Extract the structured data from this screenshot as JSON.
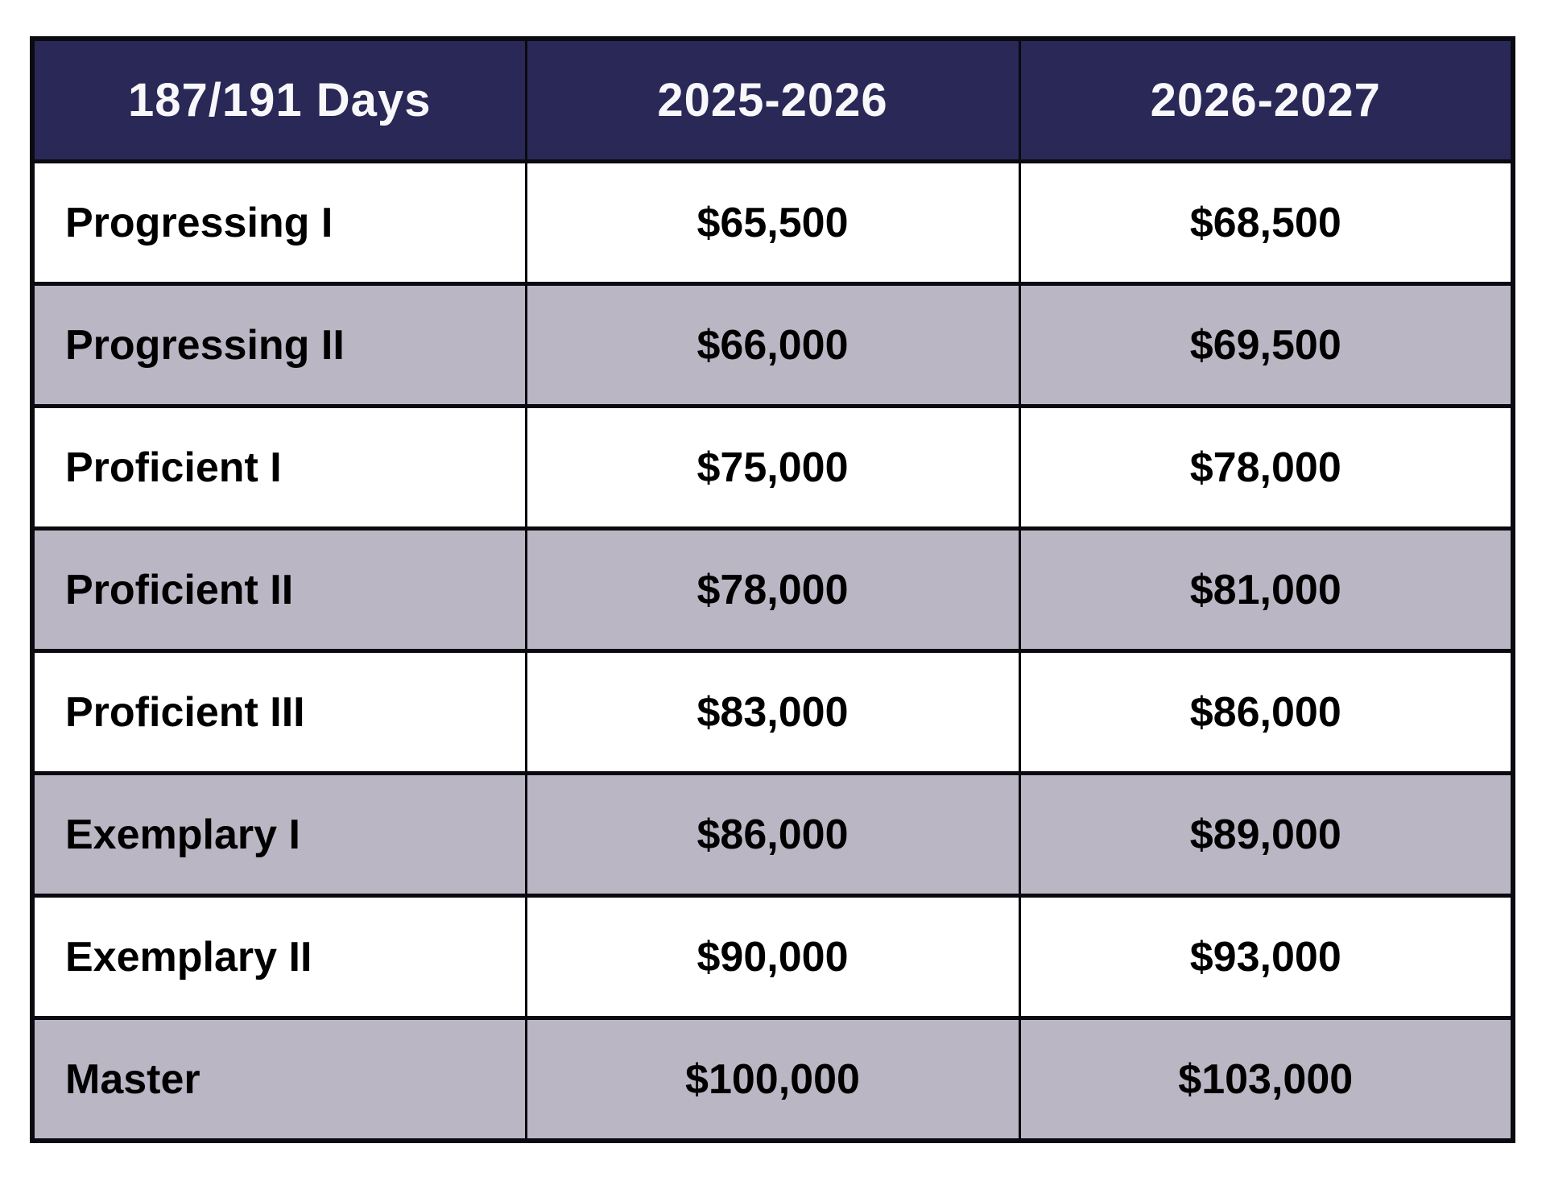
{
  "chart_data": {
    "type": "table",
    "columns": [
      "187/191 Days",
      "2025-2026",
      "2026-2027"
    ],
    "rows": [
      {
        "level": "Progressing I",
        "salary_2025_2026": "$65,500",
        "salary_2026_2027": "$68,500"
      },
      {
        "level": "Progressing II",
        "salary_2025_2026": "$66,000",
        "salary_2026_2027": "$69,500"
      },
      {
        "level": "Proficient I",
        "salary_2025_2026": "$75,000",
        "salary_2026_2027": "$78,000"
      },
      {
        "level": "Proficient II",
        "salary_2025_2026": "$78,000",
        "salary_2026_2027": "$81,000"
      },
      {
        "level": "Proficient III",
        "salary_2025_2026": "$83,000",
        "salary_2026_2027": "$86,000"
      },
      {
        "level": "Exemplary I",
        "salary_2025_2026": "$86,000",
        "salary_2026_2027": "$89,000"
      },
      {
        "level": "Exemplary II",
        "salary_2025_2026": "$90,000",
        "salary_2026_2027": "$93,000"
      },
      {
        "level": "Master",
        "salary_2025_2026": "$100,000",
        "salary_2026_2027": "$103,000"
      }
    ],
    "layout": {
      "striped": true,
      "stripe_pattern": "even rows shaded",
      "header_position": "top",
      "label_align": "left",
      "value_align": "center"
    },
    "colors": {
      "header_bg": "#2a2857",
      "header_text": "#ffffff",
      "row_bg": "#ffffff",
      "row_alt_bg": "#bab6c4",
      "border": "#0a0a10",
      "body_text": "#000000",
      "page_bg": "#ffffff"
    }
  }
}
